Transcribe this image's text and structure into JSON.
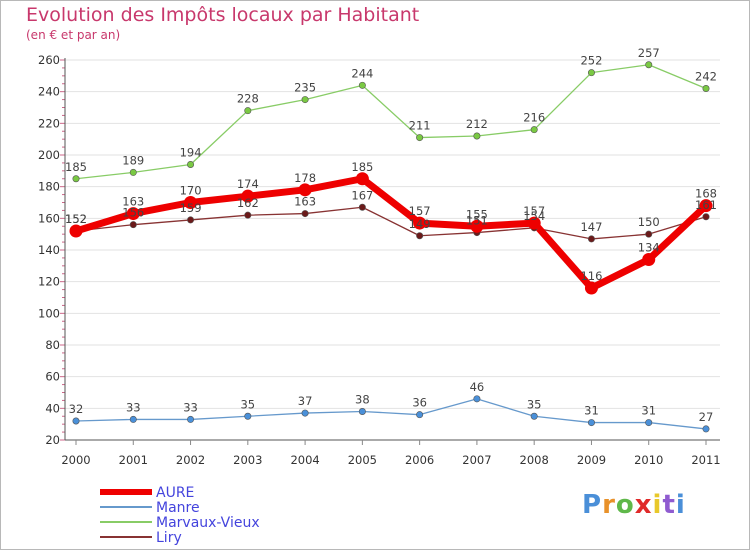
{
  "title": "Evolution des Impôts locaux par Habitant",
  "subtitle": "(en € et par an)",
  "logo": {
    "text": "Proxiti",
    "letter_colors": [
      "#4a8fd8",
      "#e8912a",
      "#5fb84a",
      "#e02a2a",
      "#e8c82a",
      "#8f5bd0",
      "#4a8fd8"
    ]
  },
  "chart_data": {
    "type": "line",
    "title": "Evolution des Impôts locaux par Habitant",
    "subtitle": "(en € et par an)",
    "x": [
      "2000",
      "2001",
      "2002",
      "2003",
      "2004",
      "2005",
      "2006",
      "2007",
      "2008",
      "2009",
      "2010",
      "2011"
    ],
    "yticks": [
      "20",
      "40",
      "60",
      "80",
      "100",
      "120",
      "140",
      "160",
      "180",
      "200",
      "220",
      "240",
      "260"
    ],
    "ylim": [
      20,
      260
    ],
    "grid": "horizontal",
    "legend_position": "bottom-left",
    "series": [
      {
        "name": "Marvaux-Vieux",
        "color": "#88cc66",
        "marker_color": "#7ac943",
        "values": [
          185,
          189,
          194,
          228,
          235,
          244,
          211,
          212,
          216,
          252,
          257,
          242
        ],
        "labels": [
          "185",
          "189",
          "194",
          "228",
          "235",
          "244",
          "211",
          "212",
          "216",
          "252",
          "257",
          "242"
        ]
      },
      {
        "name": "Liry",
        "color": "#883333",
        "marker_color": "#6b1a1a",
        "values": [
          152,
          156,
          159,
          162,
          163,
          167,
          149,
          151,
          154,
          147,
          150,
          161
        ],
        "labels": [
          "152",
          "156",
          "159",
          "162",
          "163",
          "167",
          "149",
          "151",
          "154",
          "147",
          "150",
          "161"
        ]
      },
      {
        "name": "AURE",
        "color": "#ee0000",
        "marker_color": "#ee0000",
        "values": [
          152,
          163,
          170,
          174,
          178,
          185,
          157,
          155,
          157,
          116,
          134,
          168
        ],
        "labels": [
          "152",
          "163",
          "170",
          "174",
          "178",
          "185",
          "157",
          "155",
          "157",
          "116",
          "134",
          "168"
        ]
      },
      {
        "name": "Manre",
        "color": "#6699cc",
        "marker_color": "#4a90d9",
        "values": [
          32,
          33,
          33,
          35,
          37,
          38,
          36,
          46,
          35,
          31,
          31,
          27
        ],
        "labels": [
          "32",
          "33",
          "33",
          "35",
          "37",
          "38",
          "36",
          "46",
          "35",
          "31",
          "31",
          "27"
        ]
      }
    ],
    "legend": [
      {
        "name": "AURE",
        "color": "#ee0000",
        "width": 6
      },
      {
        "name": "Manre",
        "color": "#6699cc",
        "width": 2
      },
      {
        "name": "Marvaux-Vieux",
        "color": "#88cc66",
        "width": 2
      },
      {
        "name": "Liry",
        "color": "#883333",
        "width": 2
      }
    ]
  }
}
